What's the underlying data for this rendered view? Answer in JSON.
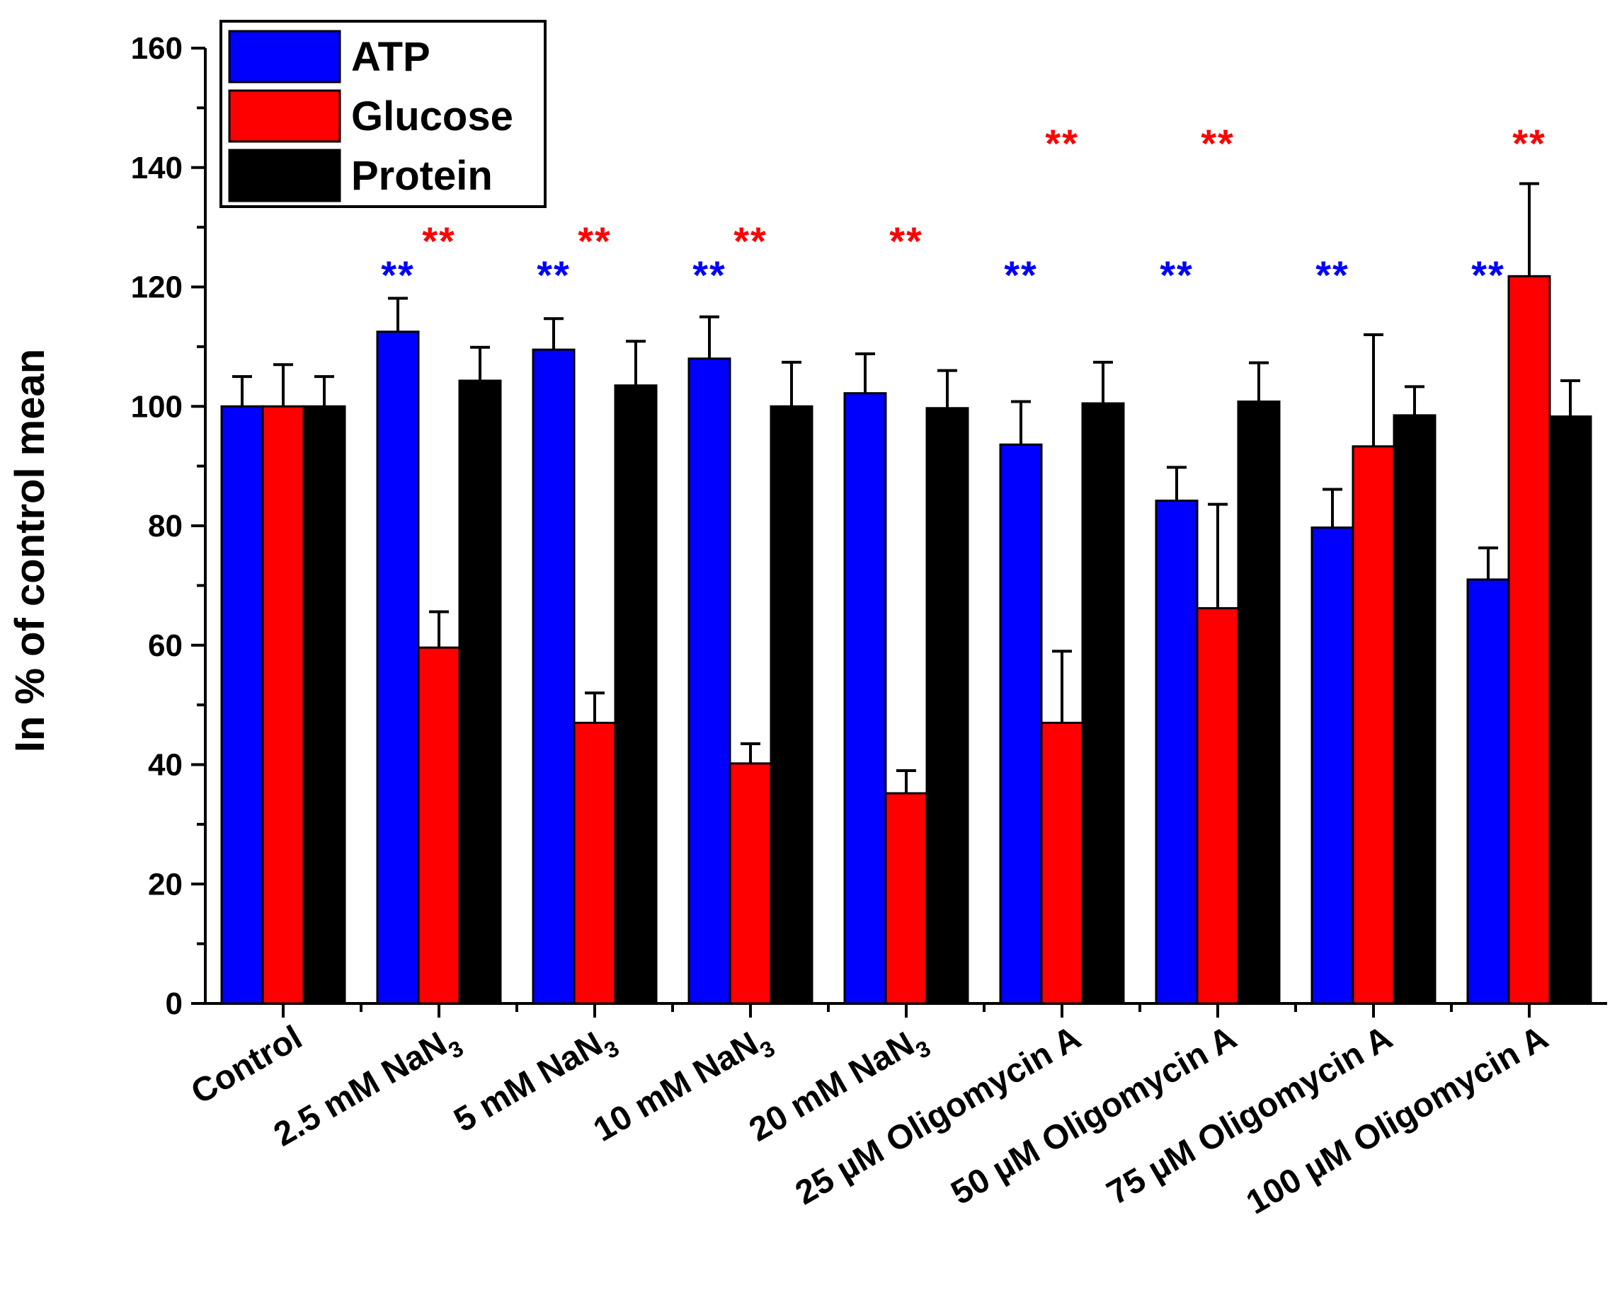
{
  "chart_data": {
    "type": "bar",
    "title": "",
    "xlabel": "",
    "ylabel": "In % of control mean",
    "ylim": [
      0,
      160
    ],
    "yticks": [
      0,
      20,
      40,
      60,
      80,
      100,
      120,
      140,
      160
    ],
    "grid": false,
    "legend_position": "top-left",
    "categories": [
      {
        "label": "Control",
        "sub": ""
      },
      {
        "label": "2.5 mM NaN",
        "sub": "3"
      },
      {
        "label": "5 mM NaN",
        "sub": "3"
      },
      {
        "label": "10 mM NaN",
        "sub": "3"
      },
      {
        "label": "20 mM NaN",
        "sub": "3"
      },
      {
        "label": "25 µM Oligomycin A",
        "sub": ""
      },
      {
        "label": "50 µM Oligomycin A",
        "sub": ""
      },
      {
        "label": "75 µM Oligomycin A",
        "sub": ""
      },
      {
        "label": "100 µM Oligomycin A",
        "sub": ""
      }
    ],
    "series": [
      {
        "name": "ATP",
        "color": "#0000ff",
        "values": [
          100,
          112.5,
          109.5,
          108,
          102.2,
          93.6,
          84.2,
          79.7,
          71
        ],
        "errors": [
          5,
          5.6,
          5.2,
          7,
          6.6,
          7.2,
          5.6,
          6.4,
          5.3
        ],
        "significance": [
          "",
          "**",
          "**",
          "**",
          "",
          "**",
          "**",
          "**",
          "**"
        ]
      },
      {
        "name": "Glucose",
        "color": "#ff0000",
        "values": [
          100,
          59.6,
          47,
          40.2,
          35.2,
          47,
          66.2,
          93.3,
          121.8
        ],
        "errors": [
          7,
          6,
          5,
          3.3,
          3.8,
          12,
          17.4,
          18.7,
          15.5
        ],
        "significance": [
          "",
          "**",
          "**",
          "**",
          "**",
          "**",
          "**",
          "",
          "**"
        ]
      },
      {
        "name": "Protein",
        "color": "#000000",
        "values": [
          100,
          104.3,
          103.5,
          100,
          99.7,
          100.5,
          100.8,
          98.5,
          98.3
        ],
        "errors": [
          5,
          5.6,
          7.4,
          7.4,
          6.3,
          6.9,
          6.5,
          4.8,
          6
        ],
        "significance": [
          "",
          "",
          "",
          "",
          "",
          "",
          "",
          "",
          ""
        ]
      }
    ],
    "significance_rows": {
      "ATP": [
        0,
        1,
        1,
        1,
        0,
        2,
        2,
        2,
        2
      ],
      "Glucose": [
        0,
        1,
        1,
        1,
        1,
        2,
        2,
        0,
        2
      ]
    }
  }
}
